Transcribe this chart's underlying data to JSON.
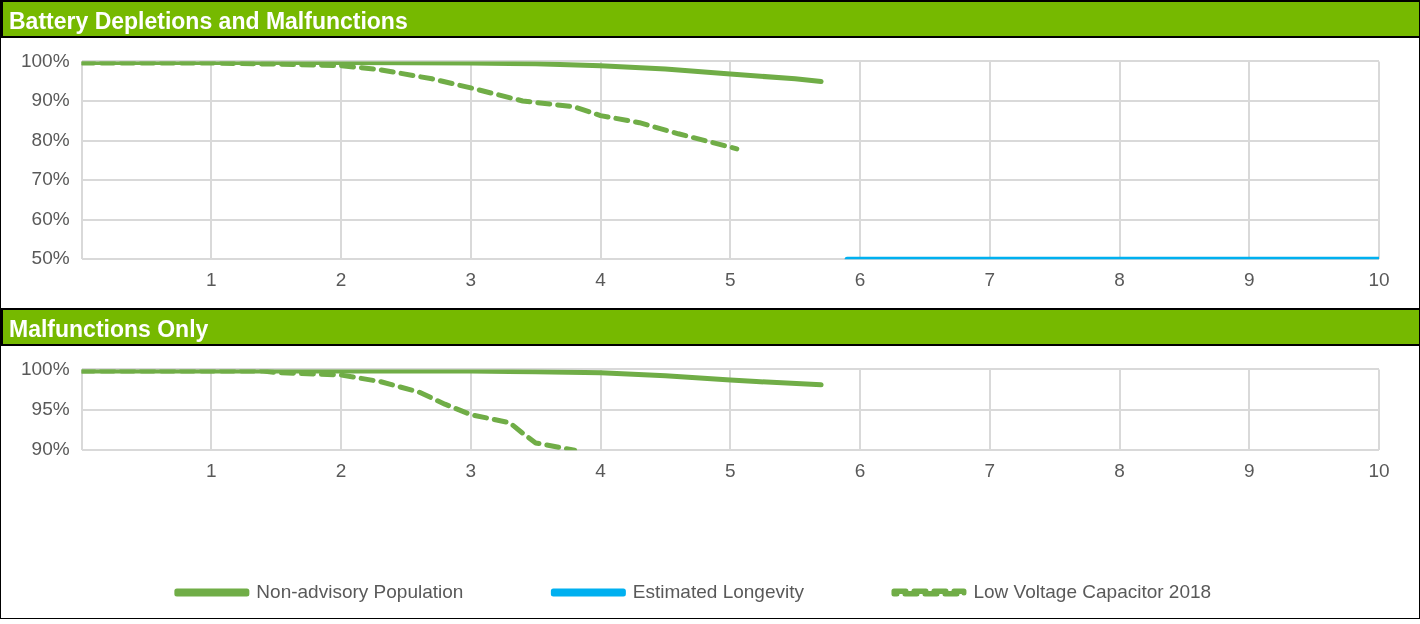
{
  "chart_data": [
    {
      "type": "line",
      "title": "Battery Depletions and Malfunctions",
      "xlim": [
        0,
        10
      ],
      "xticks": [
        {
          "value": 0,
          "label": null
        },
        1,
        2,
        3,
        4,
        5,
        6,
        7,
        8,
        9,
        10
      ],
      "ylim": [
        50,
        100
      ],
      "yticks": [
        {
          "value": 50,
          "label": "50%"
        },
        {
          "value": 60,
          "label": "60%"
        },
        {
          "value": 70,
          "label": "70%"
        },
        {
          "value": 80,
          "label": "80%"
        },
        {
          "value": 90,
          "label": "90%"
        },
        {
          "value": 100,
          "label": "100%"
        }
      ],
      "grid": true,
      "legend": false,
      "marker": "none",
      "series": [
        {
          "color": "#70ad47",
          "line_style": "solid",
          "x": [
            0,
            1,
            2,
            3,
            3.5,
            4,
            4.5,
            5,
            5.5,
            5.7
          ],
          "values": [
            99.7,
            99.7,
            99.7,
            99.6,
            99.4,
            98.9,
            98.1,
            96.8,
            95.6,
            94.9
          ]
        },
        {
          "color": "#00b0f0",
          "line_style": "solid",
          "x": [
            5.9,
            10
          ],
          "values": [
            50,
            50
          ]
        },
        {
          "color": "#70ad47",
          "line_style": "dashed",
          "x": [
            0,
            1,
            1.5,
            2,
            2.3,
            2.7,
            3,
            3.4,
            3.8,
            4,
            4.3,
            4.6,
            5.05
          ],
          "values": [
            99.6,
            99.6,
            99.3,
            98.9,
            97.9,
            95.6,
            93.3,
            90,
            88.5,
            86.3,
            84.5,
            81.7,
            77.9
          ]
        }
      ]
    },
    {
      "type": "line",
      "title": "Malfunctions Only",
      "xlim": [
        0,
        10
      ],
      "xticks": [
        {
          "value": 0,
          "label": null
        },
        1,
        2,
        3,
        4,
        5,
        6,
        7,
        8,
        9,
        10
      ],
      "ylim": [
        90,
        100
      ],
      "yticks": [
        {
          "value": 90,
          "label": "90%"
        },
        {
          "value": 95,
          "label": "95%"
        },
        {
          "value": 100,
          "label": "100%"
        }
      ],
      "grid": true,
      "legend": "bottom",
      "marker": "none",
      "series": [
        {
          "name": "Non-advisory Population",
          "color": "#70ad47",
          "line_style": "solid",
          "x": [
            0,
            1,
            2,
            3,
            3.5,
            4,
            4.5,
            5,
            5.2,
            5.7
          ],
          "values": [
            99.8,
            99.8,
            99.8,
            99.8,
            99.7,
            99.6,
            99.2,
            98.7,
            98.5,
            98.1
          ]
        },
        {
          "name": "Estimated Longevity",
          "color": "#00b0f0",
          "line_style": "solid"
        },
        {
          "name": "Low Voltage Capacitor 2018",
          "color": "#70ad47",
          "line_style": "dashed",
          "x": [
            0,
            1,
            1.4,
            1.5,
            2,
            2.3,
            2.6,
            2.8,
            3,
            3.3,
            3.4,
            3.5,
            3.8
          ],
          "values": [
            99.8,
            99.8,
            99.8,
            99.6,
            99.3,
            98.5,
            97.2,
            95.7,
            94.4,
            93.4,
            92.1,
            90.9,
            90
          ]
        }
      ]
    }
  ]
}
